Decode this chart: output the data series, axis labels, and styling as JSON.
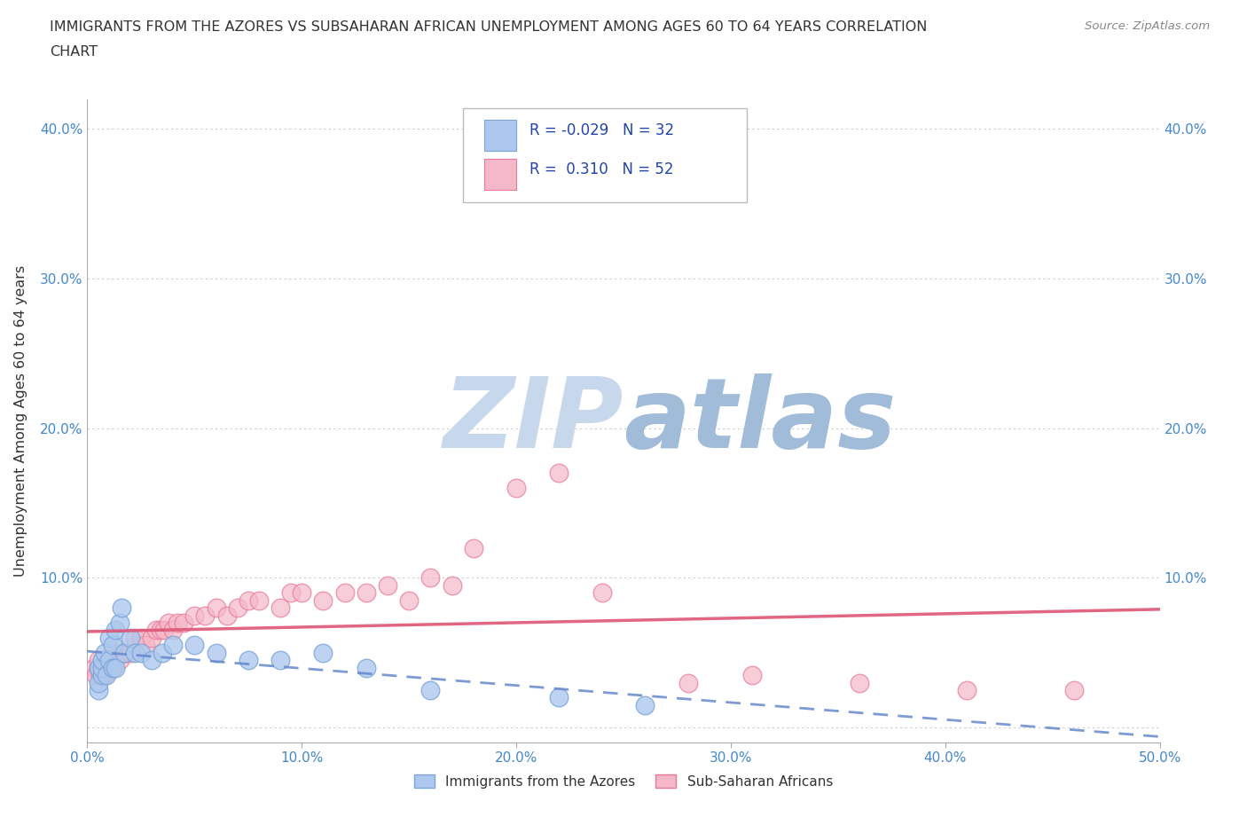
{
  "title_line1": "IMMIGRANTS FROM THE AZORES VS SUBSAHARAN AFRICAN UNEMPLOYMENT AMONG AGES 60 TO 64 YEARS CORRELATION",
  "title_line2": "CHART",
  "source": "Source: ZipAtlas.com",
  "ylabel": "Unemployment Among Ages 60 to 64 years",
  "xlim": [
    0.0,
    0.5
  ],
  "ylim": [
    -0.01,
    0.42
  ],
  "xticks": [
    0.0,
    0.1,
    0.2,
    0.3,
    0.4,
    0.5
  ],
  "yticks": [
    0.0,
    0.1,
    0.2,
    0.3,
    0.4
  ],
  "xtick_labels": [
    "0.0%",
    "10.0%",
    "20.0%",
    "30.0%",
    "40.0%",
    "50.0%"
  ],
  "ytick_labels": [
    "",
    "10.0%",
    "20.0%",
    "30.0%",
    "40.0%"
  ],
  "right_ytick_labels": [
    "10.0%",
    "20.0%",
    "30.0%",
    "40.0%"
  ],
  "right_yticks": [
    0.1,
    0.2,
    0.3,
    0.4
  ],
  "azores_R": -0.029,
  "azores_N": 32,
  "subsaharan_R": 0.31,
  "subsaharan_N": 52,
  "azores_color": "#adc8ee",
  "subsaharan_color": "#f5b8c8",
  "azores_edge_color": "#7ba5d8",
  "subsaharan_edge_color": "#e87898",
  "azores_line_color": "#6688cc",
  "subsaharan_line_color": "#dd5577",
  "watermark_zip_color": "#b8cce4",
  "watermark_atlas_color": "#88aacc",
  "grid_color": "#cccccc",
  "background_color": "#ffffff",
  "azores_x": [
    0.005,
    0.005,
    0.005,
    0.007,
    0.007,
    0.007,
    0.008,
    0.009,
    0.01,
    0.01,
    0.012,
    0.012,
    0.013,
    0.013,
    0.015,
    0.016,
    0.017,
    0.02,
    0.022,
    0.025,
    0.03,
    0.035,
    0.04,
    0.05,
    0.06,
    0.075,
    0.09,
    0.11,
    0.13,
    0.16,
    0.22,
    0.26
  ],
  "azores_y": [
    0.025,
    0.03,
    0.04,
    0.035,
    0.04,
    0.045,
    0.05,
    0.035,
    0.045,
    0.06,
    0.04,
    0.055,
    0.04,
    0.065,
    0.07,
    0.08,
    0.05,
    0.06,
    0.05,
    0.05,
    0.045,
    0.05,
    0.055,
    0.055,
    0.05,
    0.045,
    0.045,
    0.05,
    0.04,
    0.025,
    0.02,
    0.015
  ],
  "subsaharan_x": [
    0.003,
    0.004,
    0.005,
    0.005,
    0.006,
    0.007,
    0.008,
    0.009,
    0.01,
    0.012,
    0.013,
    0.015,
    0.016,
    0.018,
    0.02,
    0.022,
    0.025,
    0.027,
    0.03,
    0.032,
    0.034,
    0.036,
    0.038,
    0.04,
    0.042,
    0.045,
    0.05,
    0.055,
    0.06,
    0.065,
    0.07,
    0.075,
    0.08,
    0.09,
    0.095,
    0.1,
    0.11,
    0.12,
    0.13,
    0.14,
    0.15,
    0.16,
    0.17,
    0.18,
    0.2,
    0.22,
    0.24,
    0.28,
    0.31,
    0.36,
    0.41,
    0.46
  ],
  "subsaharan_y": [
    0.04,
    0.035,
    0.04,
    0.045,
    0.035,
    0.04,
    0.035,
    0.04,
    0.045,
    0.04,
    0.045,
    0.045,
    0.05,
    0.05,
    0.05,
    0.06,
    0.06,
    0.055,
    0.06,
    0.065,
    0.065,
    0.065,
    0.07,
    0.065,
    0.07,
    0.07,
    0.075,
    0.075,
    0.08,
    0.075,
    0.08,
    0.085,
    0.085,
    0.08,
    0.09,
    0.09,
    0.085,
    0.09,
    0.09,
    0.095,
    0.085,
    0.1,
    0.095,
    0.12,
    0.16,
    0.17,
    0.09,
    0.03,
    0.035,
    0.03,
    0.025,
    0.025
  ]
}
